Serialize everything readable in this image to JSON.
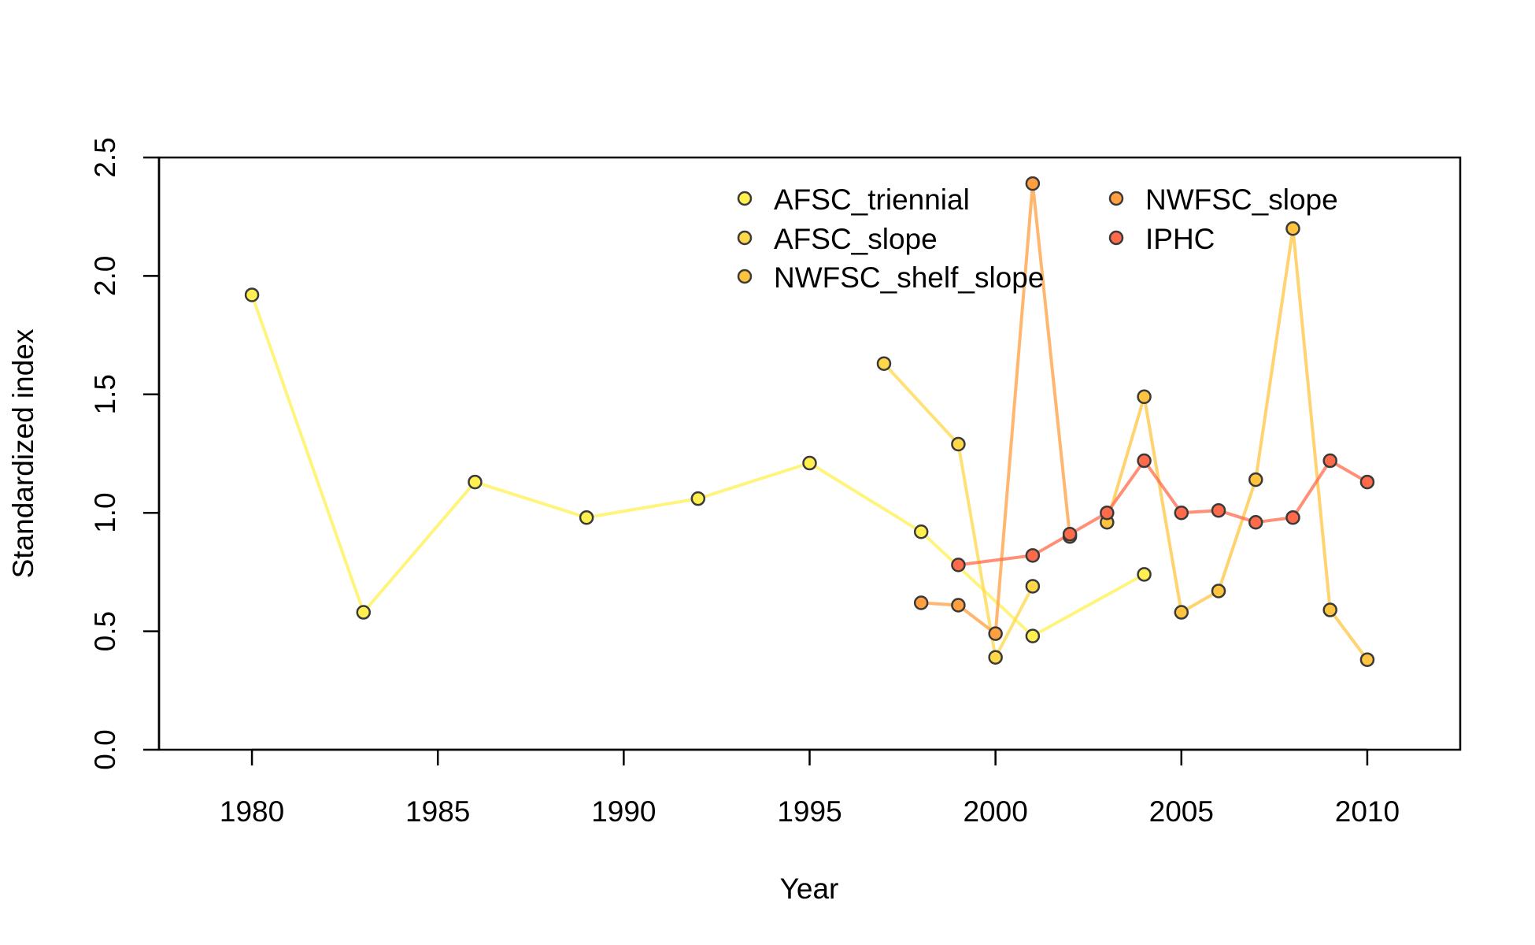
{
  "chart_data": {
    "type": "line",
    "xlabel": "Year",
    "ylabel": "Standardized index",
    "xlim": [
      1977.5,
      2012.5
    ],
    "ylim": [
      0,
      2.5
    ],
    "x_ticks": [
      "1980",
      "1985",
      "1990",
      "1995",
      "2000",
      "2005",
      "2010"
    ],
    "y_ticks": [
      "0.0",
      "0.5",
      "1.0",
      "1.5",
      "2.0",
      "2.5"
    ],
    "grid": false,
    "legend_position": "top-right",
    "series": [
      {
        "name": "AFSC_triennial",
        "color": "#FFF050",
        "points": [
          [
            1980,
            1.92
          ],
          [
            1983,
            0.58
          ],
          [
            1986,
            1.13
          ],
          [
            1989,
            0.98
          ],
          [
            1992,
            1.06
          ],
          [
            1995,
            1.21
          ],
          [
            1998,
            0.92
          ],
          [
            2001,
            0.48
          ],
          [
            2004,
            0.74
          ]
        ]
      },
      {
        "name": "AFSC_slope",
        "color": "#FFD84A",
        "points": [
          [
            1997,
            1.63
          ],
          [
            1999,
            1.29
          ],
          [
            2000,
            0.39
          ],
          [
            2001,
            0.69
          ]
        ]
      },
      {
        "name": "NWFSC_shelf_slope",
        "color": "#FFC43F",
        "points": [
          [
            2003,
            0.96
          ],
          [
            2004,
            1.49
          ],
          [
            2005,
            0.58
          ],
          [
            2006,
            0.67
          ],
          [
            2007,
            1.14
          ],
          [
            2008,
            2.2
          ],
          [
            2009,
            0.59
          ],
          [
            2010,
            0.38
          ]
        ]
      },
      {
        "name": "NWFSC_slope",
        "color": "#FF9F3F",
        "points": [
          [
            1998,
            0.62
          ],
          [
            1999,
            0.61
          ],
          [
            2000,
            0.49
          ],
          [
            2001,
            2.39
          ],
          [
            2002,
            0.9
          ]
        ]
      },
      {
        "name": "IPHC",
        "color": "#FF6A4A",
        "points": [
          [
            1999,
            0.78
          ],
          [
            2001,
            0.82
          ],
          [
            2002,
            0.91
          ],
          [
            2003,
            1.0
          ],
          [
            2004,
            1.22
          ],
          [
            2005,
            1.0
          ],
          [
            2006,
            1.01
          ],
          [
            2007,
            0.96
          ],
          [
            2008,
            0.98
          ],
          [
            2009,
            1.22
          ],
          [
            2010,
            1.13
          ]
        ]
      }
    ]
  }
}
